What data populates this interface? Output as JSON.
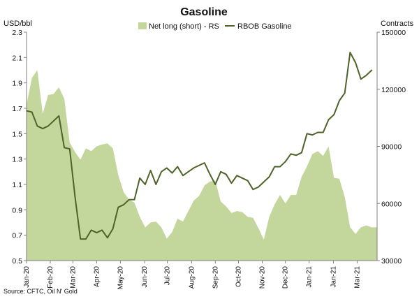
{
  "chart_data": {
    "type": "line",
    "title": "Gasoline",
    "source": "Source: CFTC, Oil N' Gold",
    "left_axis": {
      "unit_label": "USD/bbl",
      "range": [
        0.5,
        2.3
      ],
      "ticks": [
        0.5,
        0.7,
        0.9,
        1.1,
        1.3,
        1.5,
        1.7,
        1.9,
        2.1,
        2.3
      ],
      "tick_labels": [
        "0.5",
        "0.7",
        "0.9",
        "1.1",
        "1.3",
        "1.5",
        "1.7",
        "1.9",
        "2.1",
        "2.3"
      ]
    },
    "right_axis": {
      "unit_label": "Contracts",
      "range": [
        30000,
        150000
      ],
      "ticks": [
        30000,
        60000,
        90000,
        120000,
        150000
      ],
      "tick_labels": [
        "30000",
        "60000",
        "90000",
        "120000",
        "150000"
      ]
    },
    "x_axis": {
      "tick_labels": [
        "Jan-20",
        "Feb-20",
        "Mar-20",
        "Apr-20",
        "May-20",
        "Jun-20",
        "Jul-20",
        "Aug-20",
        "Sep-20",
        "Oct-20",
        "Nov-20",
        "Dec-20",
        "Jan-21",
        "Jan-21",
        "Mar-21"
      ],
      "tick_positions": [
        0,
        4.4,
        8.6,
        13,
        17.4,
        21.9,
        26.1,
        30.6,
        35,
        39.3,
        43.7,
        48,
        52.4,
        56.9,
        61.3
      ]
    },
    "grid": false,
    "legend_position": "top-center",
    "series": [
      {
        "name": "Net long (short) - RS",
        "type": "area",
        "axis": "right",
        "color": "#c3d69b",
        "values": [
          112000,
          126000,
          130000,
          107000,
          117000,
          117500,
          121000,
          115000,
          92000,
          87000,
          83000,
          89000,
          87500,
          90000,
          91000,
          91500,
          89000,
          75000,
          66000,
          62000,
          60500,
          53000,
          47500,
          50000,
          50500,
          47500,
          41500,
          45000,
          52000,
          50500,
          56000,
          61500,
          64000,
          69500,
          71500,
          72000,
          61000,
          58500,
          55000,
          56000,
          55500,
          53000,
          52500,
          47000,
          41000,
          53000,
          59500,
          64500,
          60000,
          64500,
          64500,
          74000,
          79500,
          86000,
          87500,
          85000,
          90000,
          73500,
          73000,
          63500,
          47500,
          44000,
          47500,
          48500,
          47500,
          47500
        ]
      },
      {
        "name": "RBOB Gasoline",
        "type": "line",
        "axis": "left",
        "color": "#4f6228",
        "values": [
          1.68,
          1.67,
          1.56,
          1.54,
          1.56,
          1.6,
          1.64,
          1.39,
          1.38,
          1.0,
          0.67,
          0.67,
          0.74,
          0.72,
          0.74,
          0.68,
          0.75,
          0.92,
          0.94,
          0.98,
          0.98,
          1.15,
          1.1,
          1.21,
          1.1,
          1.2,
          1.23,
          1.19,
          1.24,
          1.17,
          1.2,
          1.23,
          1.25,
          1.27,
          1.18,
          1.1,
          1.2,
          1.18,
          1.11,
          1.17,
          1.15,
          1.13,
          1.06,
          1.08,
          1.12,
          1.16,
          1.24,
          1.24,
          1.28,
          1.34,
          1.33,
          1.35,
          1.5,
          1.49,
          1.51,
          1.51,
          1.61,
          1.65,
          1.76,
          1.82,
          2.14,
          2.06,
          1.93,
          1.96,
          2.0
        ]
      }
    ]
  }
}
